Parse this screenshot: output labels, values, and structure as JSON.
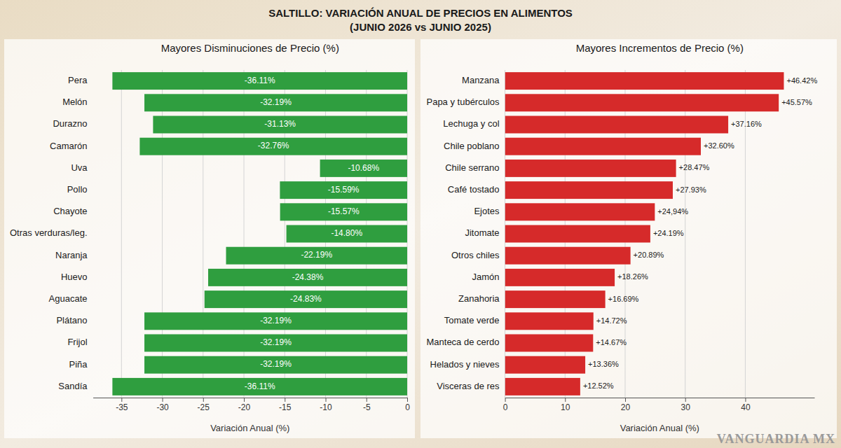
{
  "title": "SALTILLO: VARIACIÓN ANUAL DE PRECIOS EN ALIMENTOS",
  "subtitle": "(JUNIO 2026 vs JUNIO 2025)",
  "watermark": "VANGUARDIA MX",
  "chart_data": [
    {
      "type": "bar",
      "orientation": "horizontal",
      "title": "Mayores Disminuciones de Precio (%)",
      "x_label": "Variación Anual (%)",
      "categories": [
        "Pera",
        "Melón",
        "Durazno",
        "Camarón",
        "Uva",
        "Pollo",
        "Chayote",
        "Otras verduras/leg.",
        "Naranja",
        "Huevo",
        "Aguacate",
        "Plátano",
        "Frijol",
        "Piña",
        "Sandía"
      ],
      "values": [
        -36.11,
        -32.19,
        -31.13,
        -32.76,
        -10.68,
        -15.59,
        -15.57,
        -14.8,
        -22.19,
        -24.38,
        -24.83,
        -32.19,
        -32.19,
        -32.19,
        -36.11
      ],
      "value_labels": [
        "-36.11%",
        "-32.19%",
        "-31.13%",
        "-32.76%",
        "-10.68%",
        "-15.59%",
        "-15.57%",
        "-14.80%",
        "-22.19%",
        "-24.38%",
        "-24.83%",
        "-32.19%",
        "-32.19%",
        "-32.19%",
        "-36.11%"
      ],
      "color": "#2f9e3f",
      "xlim": [
        -38.5,
        0
      ],
      "xticks": [
        -35,
        -30,
        -25,
        -20,
        -15,
        -10,
        -5,
        0
      ],
      "data_labels": true,
      "grid": true
    },
    {
      "type": "bar",
      "orientation": "horizontal",
      "title": "Mayores Incrementos de Precio (%)",
      "x_label": "Variación Anual (%)",
      "categories": [
        "Manzana",
        "Papa y tubérculos",
        "Lechuga y col",
        "Chile poblano",
        "Chile serrano",
        "Café tostado",
        "Ejotes",
        "Jitomate",
        "Otros chiles",
        "Jamón",
        "Zanahoria",
        "Tomate verde",
        "Manteca de cerdo",
        "Helados y nieves",
        "Visceras de res"
      ],
      "values": [
        46.42,
        45.57,
        37.16,
        32.6,
        28.47,
        27.93,
        24.94,
        24.19,
        20.89,
        18.26,
        16.69,
        14.72,
        14.67,
        13.36,
        12.52
      ],
      "value_labels": [
        "+46.42%",
        "+45.57%",
        "+37.16%",
        "+32.60%",
        "+28.47%",
        "+27.93%",
        "+24,94%",
        "+24.19%",
        "+20.89%",
        "+18.26%",
        "+16.69%",
        "+14.72%",
        "+14.67%",
        "+13.36%",
        "+12.52%"
      ],
      "color": "#d62a2a",
      "xlim": [
        0,
        51.5
      ],
      "xticks": [
        0,
        10,
        20,
        30,
        40
      ],
      "data_labels": true,
      "grid": true
    }
  ]
}
